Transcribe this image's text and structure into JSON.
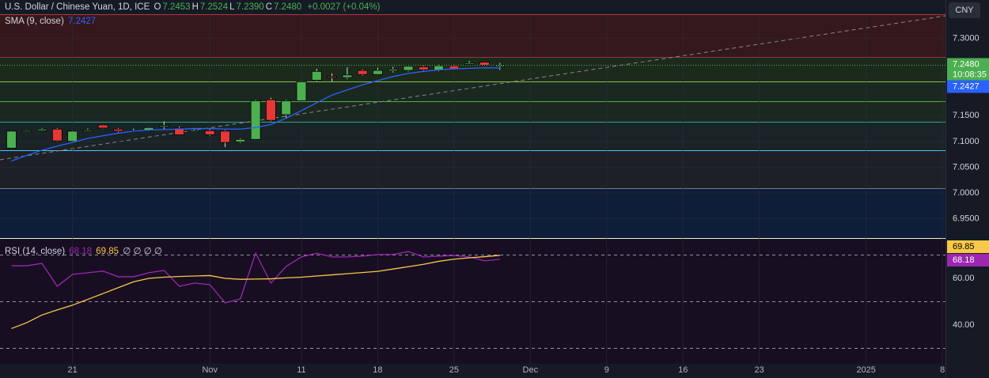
{
  "chart_data": [
    {
      "type": "candlestick",
      "title": "U.S. Dollar / Chinese Yuan, 1D, ICE",
      "ohlc_legend": [
        {
          "key": "O",
          "value": "7.2453"
        },
        {
          "key": "H",
          "value": "7.2524"
        },
        {
          "key": "L",
          "value": "7.2390"
        },
        {
          "key": "C",
          "value": "7.2480"
        }
      ],
      "change": "+0.0027 (+0.04%)",
      "currency": "CNY",
      "close_label": "7.2480",
      "countdown": "10:08:35",
      "up_color": "#4caf50",
      "down_color": "#e53935",
      "x": [
        0,
        1,
        2,
        3,
        4,
        5,
        6,
        7,
        8,
        9,
        10,
        11,
        12,
        13,
        14,
        15,
        16,
        17,
        18,
        19,
        20,
        21,
        22,
        23,
        24,
        25,
        26,
        27,
        28,
        29,
        30,
        31,
        32
      ],
      "open": [
        7.087,
        7.12,
        7.121,
        7.124,
        7.1,
        7.121,
        7.132,
        7.124,
        7.12,
        7.121,
        7.13,
        7.126,
        7.12,
        7.121,
        7.12,
        7.099,
        7.104,
        7.181,
        7.152,
        7.179,
        7.219,
        7.226,
        7.224,
        7.238,
        7.23,
        7.237,
        7.238,
        7.245,
        7.238,
        7.247,
        7.251,
        7.254,
        7.2453
      ],
      "high": [
        7.121,
        7.122,
        7.126,
        7.126,
        7.121,
        7.125,
        7.133,
        7.126,
        7.125,
        7.128,
        7.139,
        7.129,
        7.124,
        7.124,
        7.122,
        7.106,
        7.181,
        7.185,
        7.181,
        7.217,
        7.241,
        7.232,
        7.244,
        7.24,
        7.243,
        7.245,
        7.247,
        7.247,
        7.249,
        7.249,
        7.256,
        7.255,
        7.2524
      ],
      "low": [
        7.086,
        7.119,
        7.12,
        7.1,
        7.099,
        7.12,
        7.125,
        7.118,
        7.118,
        7.12,
        7.124,
        7.112,
        7.118,
        7.111,
        7.089,
        7.097,
        7.103,
        7.139,
        7.145,
        7.178,
        7.217,
        7.216,
        7.221,
        7.228,
        7.229,
        7.234,
        7.236,
        7.237,
        7.236,
        7.24,
        7.249,
        7.247,
        7.239
      ],
      "close": [
        7.12,
        7.121,
        7.124,
        7.101,
        7.12,
        7.122,
        7.126,
        7.12,
        7.121,
        7.127,
        7.131,
        7.113,
        7.121,
        7.113,
        7.098,
        7.104,
        7.179,
        7.141,
        7.179,
        7.216,
        7.236,
        7.225,
        7.229,
        7.23,
        7.238,
        7.24,
        7.246,
        7.239,
        7.247,
        7.241,
        7.252,
        7.248,
        7.248
      ],
      "series": [
        {
          "name": "SMA (9, close)",
          "color": "#2962ff",
          "values": [
            7.062,
            7.073,
            7.083,
            7.091,
            7.098,
            7.106,
            7.111,
            7.116,
            7.12,
            7.122,
            7.123,
            7.124,
            7.125,
            7.125,
            7.124,
            7.124,
            7.127,
            7.133,
            7.145,
            7.16,
            7.175,
            7.19,
            7.2,
            7.21,
            7.218,
            7.226,
            7.232,
            7.236,
            7.239,
            7.241,
            7.242,
            7.243,
            7.2427
          ]
        }
      ],
      "xlim": [
        -0.75,
        61.2
      ],
      "xticks": [
        {
          "value": 4,
          "label": "21"
        },
        {
          "value": 13,
          "label": "Nov"
        },
        {
          "value": 19,
          "label": "11"
        },
        {
          "value": 24,
          "label": "18"
        },
        {
          "value": 29,
          "label": "25"
        },
        {
          "value": 34,
          "label": "Dec"
        },
        {
          "value": 39,
          "label": "9"
        },
        {
          "value": 44,
          "label": "16"
        },
        {
          "value": 49,
          "label": "23"
        },
        {
          "value": 56,
          "label": "2025"
        },
        {
          "value": 61,
          "label": "8"
        }
      ],
      "ylim": [
        6.914,
        7.347
      ],
      "yticks": [
        {
          "value": 6.95,
          "label": "6.9500"
        },
        {
          "value": 7.0,
          "label": "7.0000"
        },
        {
          "value": 7.05,
          "label": "7.0500"
        },
        {
          "value": 7.1,
          "label": "7.1000"
        },
        {
          "value": 7.15,
          "label": "7.1500"
        },
        {
          "value": 7.3,
          "label": "7.3000"
        }
      ],
      "grid": true
    },
    {
      "type": "line",
      "title": "RSI (14, close)",
      "extra": "∅ ∅ ∅ ∅",
      "x": [
        0,
        1,
        2,
        3,
        4,
        5,
        6,
        7,
        8,
        9,
        10,
        11,
        12,
        13,
        14,
        15,
        16,
        17,
        18,
        19,
        20,
        21,
        22,
        23,
        24,
        25,
        26,
        27,
        28,
        29,
        30,
        31,
        32
      ],
      "series": [
        {
          "color": "#9c27b0",
          "values": [
            65.4,
            65.4,
            66.4,
            56.6,
            61.7,
            62.4,
            63.1,
            60.7,
            60.7,
            62.4,
            63.4,
            56.6,
            58.0,
            57.3,
            49.5,
            51.2,
            70.8,
            58.0,
            65.1,
            69.2,
            70.8,
            69.2,
            69.2,
            69.5,
            70.2,
            70.2,
            71.5,
            69.2,
            69.5,
            69.8,
            69.2,
            67.5,
            68.18
          ]
        },
        {
          "color": "#f7c948",
          "values": [
            38.5,
            41,
            44.3,
            46.5,
            48.5,
            51,
            53.5,
            56,
            58.5,
            60,
            60.5,
            60.8,
            61,
            61.2,
            60,
            59.6,
            59.7,
            59.8,
            60.2,
            60.5,
            61,
            61.5,
            62,
            62.5,
            63,
            64,
            65,
            66,
            67.3,
            68.2,
            68.8,
            69.3,
            69.85
          ]
        }
      ],
      "levels": [
        70,
        50,
        30
      ],
      "ylim": [
        23.4,
        76.6
      ],
      "yticks": [
        {
          "value": 60,
          "label": "60.00"
        },
        {
          "value": 40,
          "label": "40.00"
        }
      ]
    }
  ]
}
